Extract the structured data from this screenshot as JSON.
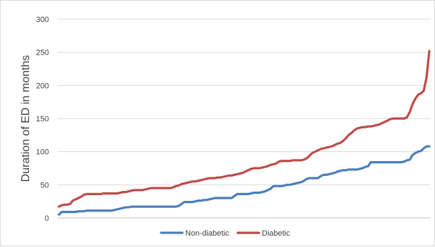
{
  "chart_data": {
    "type": "line",
    "ylabel": "Duration of ED in months",
    "ylim": [
      0,
      300
    ],
    "yticks": [
      0,
      50,
      100,
      150,
      200,
      250,
      300
    ],
    "grid": true,
    "legend": "bottom",
    "series": [
      {
        "name": "Non-diabetic",
        "color": "#4a7ebb",
        "values": [
          5,
          9,
          9,
          9,
          9,
          9,
          9,
          10,
          10,
          10,
          11,
          11,
          11,
          11,
          11,
          11,
          11,
          11,
          11,
          11,
          12,
          13,
          14,
          15,
          16,
          16,
          17,
          17,
          17,
          17,
          17,
          17,
          17,
          17,
          17,
          17,
          17,
          17,
          17,
          17,
          17,
          17,
          17,
          18,
          21,
          24,
          24,
          24,
          24,
          25,
          26,
          26,
          27,
          27,
          28,
          29,
          30,
          30,
          30,
          30,
          30,
          30,
          30,
          33,
          36,
          36,
          36,
          36,
          36,
          37,
          38,
          38,
          38,
          39,
          40,
          42,
          44,
          48,
          48,
          48,
          48,
          49,
          50,
          50,
          51,
          52,
          53,
          54,
          56,
          59,
          60,
          60,
          60,
          60,
          63,
          65,
          65,
          66,
          67,
          68,
          70,
          71,
          72,
          72,
          73,
          73,
          73,
          73,
          74,
          75,
          77,
          78,
          84,
          84,
          84,
          84,
          84,
          84,
          84,
          84,
          84,
          84,
          84,
          84,
          85,
          87,
          88,
          95,
          98,
          100,
          101,
          105,
          108,
          108
        ]
      },
      {
        "name": "Diabetic",
        "color": "#be4b48",
        "values": [
          17,
          19,
          20,
          20,
          21,
          26,
          28,
          30,
          32,
          35,
          36,
          36,
          36,
          36,
          36,
          36,
          37,
          37,
          37,
          37,
          37,
          37,
          38,
          39,
          39,
          40,
          41,
          42,
          42,
          42,
          42,
          43,
          44,
          45,
          45,
          45,
          45,
          45,
          45,
          45,
          45,
          46,
          48,
          49,
          51,
          52,
          53,
          54,
          55,
          55,
          56,
          57,
          58,
          59,
          60,
          60,
          60,
          61,
          61,
          62,
          63,
          64,
          64,
          65,
          66,
          67,
          68,
          70,
          72,
          74,
          75,
          75,
          75,
          76,
          77,
          78,
          80,
          81,
          82,
          85,
          86,
          86,
          86,
          86,
          87,
          87,
          87,
          87,
          88,
          90,
          94,
          98,
          100,
          102,
          104,
          105,
          106,
          107,
          108,
          110,
          112,
          113,
          116,
          120,
          125,
          128,
          132,
          135,
          136,
          137,
          137,
          138,
          138,
          139,
          140,
          141,
          143,
          145,
          147,
          149,
          150,
          150,
          150,
          150,
          150,
          152,
          160,
          172,
          180,
          186,
          188,
          192,
          212,
          252
        ]
      }
    ]
  }
}
